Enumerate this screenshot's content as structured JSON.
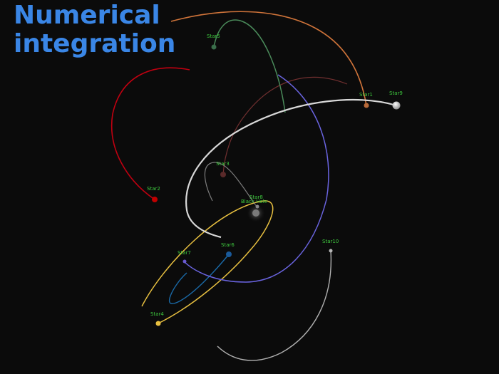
{
  "title": {
    "line1": "Numerical",
    "line2": "integration"
  },
  "center": {
    "label": "Black Hole",
    "color": "#6e6e6e"
  },
  "stars": [
    {
      "id": "star1",
      "name": "Star1",
      "color": "#b86a3a",
      "orbit_color": "#d0743a"
    },
    {
      "id": "star2",
      "name": "Star2",
      "color": "#c00000",
      "orbit_color": "#c00010"
    },
    {
      "id": "star3",
      "name": "Star3",
      "color": "#5a2a2a",
      "orbit_color": "#8a3838"
    },
    {
      "id": "star4",
      "name": "Star4",
      "color": "#e8c040",
      "orbit_color": "#e8c040"
    },
    {
      "id": "star5",
      "name": "Star5",
      "color": "#3a6e4a",
      "orbit_color": "#4a8a5a"
    },
    {
      "id": "star6",
      "name": "Star6",
      "color": "#1a5a9a",
      "orbit_color": "#1a6aa8"
    },
    {
      "id": "star7",
      "name": "Star7",
      "color": "#6a5ad0",
      "orbit_color": "#6a64e0"
    },
    {
      "id": "star8",
      "name": "Star8",
      "color": "#8a8a8a",
      "orbit_color": "#9a9a9a"
    },
    {
      "id": "star9",
      "name": "Star9",
      "color": "#e8e8e8",
      "orbit_color": "#d8d8d8"
    },
    {
      "id": "star10",
      "name": "Star10",
      "color": "#b8b8b8",
      "orbit_color": "#b0b0b0"
    }
  ]
}
